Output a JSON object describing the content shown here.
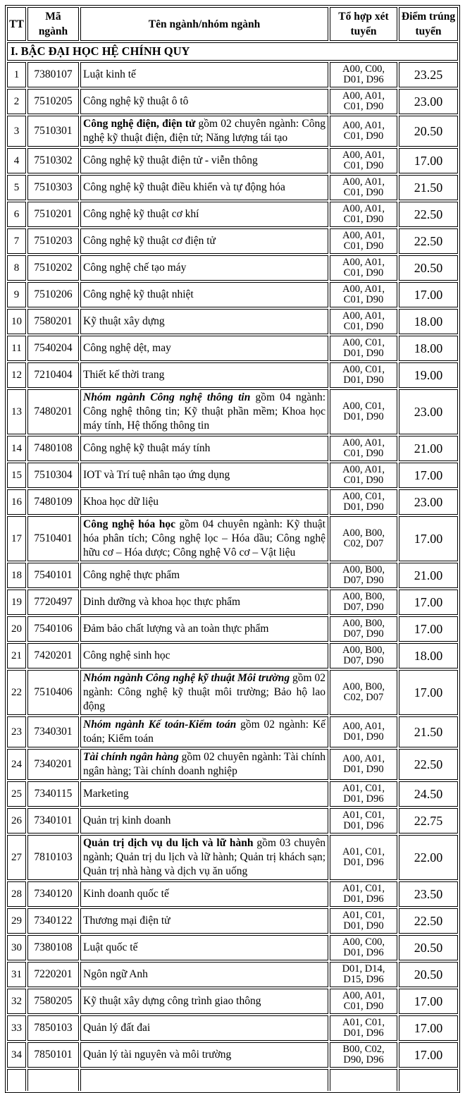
{
  "table": {
    "columns": [
      {
        "key": "tt",
        "label": "TT"
      },
      {
        "key": "code",
        "label": "Mã\nngành"
      },
      {
        "key": "name",
        "label": "Tên ngành/nhóm ngành"
      },
      {
        "key": "combo",
        "label": "Tổ hợp xét\ntuyển"
      },
      {
        "key": "score",
        "label": "Điểm trúng\ntuyển"
      }
    ],
    "section_header": "I. BẬC ĐẠI HỌC HỆ CHÍNH QUY",
    "rows": [
      {
        "tt": "1",
        "code": "7380107",
        "name": "Luật kinh tế",
        "combo": "A00, C00,\nD01, D96",
        "score": "23.25"
      },
      {
        "tt": "2",
        "code": "7510205",
        "name": "Công nghệ kỹ thuật ô tô",
        "combo": "A00, A01,\nC01, D90",
        "score": "23.00"
      },
      {
        "tt": "3",
        "code": "7510301",
        "name_em": "Công nghệ điện, điện tử",
        "em_italic": false,
        "name": " gồm 02 chuyên ngành: Công nghệ kỹ thuật điện, điện tử; Năng lượng tái tạo",
        "combo": "A00, A01,\nC01, D90",
        "score": "20.50"
      },
      {
        "tt": "4",
        "code": "7510302",
        "name": "Công nghệ kỹ thuật điện tử - viễn thông",
        "combo": "A00, A01,\nC01, D90",
        "score": "17.00"
      },
      {
        "tt": "5",
        "code": "7510303",
        "name": "Công nghệ kỹ thuật điều khiển và tự động hóa",
        "combo": "A00, A01,\nC01, D90",
        "score": "21.50"
      },
      {
        "tt": "6",
        "code": "7510201",
        "name": "Công nghệ kỹ thuật cơ khí",
        "combo": "A00, A01,\nC01, D90",
        "score": "22.50"
      },
      {
        "tt": "7",
        "code": "7510203",
        "name": "Công nghệ kỹ thuật cơ điện tử",
        "combo": "A00, A01,\nC01, D90",
        "score": "22.50"
      },
      {
        "tt": "8",
        "code": "7510202",
        "name": "Công nghệ chế tạo máy",
        "combo": "A00, A01,\nC01, D90",
        "score": "20.50"
      },
      {
        "tt": "9",
        "code": "7510206",
        "name": "Công nghệ kỹ thuật nhiệt",
        "combo": "A00, A01,\nC01, D90",
        "score": "17.00"
      },
      {
        "tt": "10",
        "code": "7580201",
        "name": "Kỹ thuật xây dựng",
        "combo": "A00, A01,\nC01, D90",
        "score": "18.00"
      },
      {
        "tt": "11",
        "code": "7540204",
        "name": "Công nghệ dệt, may",
        "combo": "A00, C01,\nD01, D90",
        "score": "18.00"
      },
      {
        "tt": "12",
        "code": "7210404",
        "name": "Thiết kế thời trang",
        "combo": "A00, C01,\nD01, D90",
        "score": "19.00"
      },
      {
        "tt": "13",
        "code": "7480201",
        "name_em": "Nhóm ngành Công nghệ thông tin",
        "em_italic": true,
        "name": " gồm 04 ngành: Công nghệ thông tin; Kỹ thuật phần mềm; Khoa học máy tính, Hệ thống thông tin",
        "combo": "A00, C01,\nD01, D90",
        "score": "23.00"
      },
      {
        "tt": "14",
        "code": "7480108",
        "name": "Công nghệ kỹ thuật máy tính",
        "combo": "A00, A01,\nC01, D90",
        "score": "21.00"
      },
      {
        "tt": "15",
        "code": "7510304",
        "name": "IOT và Trí tuệ nhân tạo ứng dụng",
        "combo": "A00, A01,\nC01, D90",
        "score": "17.00"
      },
      {
        "tt": "16",
        "code": "7480109",
        "name": "Khoa học dữ liệu",
        "combo": "A00, C01,\nD01, D90",
        "score": "23.00"
      },
      {
        "tt": "17",
        "code": "7510401",
        "name_em": "Công nghệ hóa học",
        "em_italic": false,
        "name": " gồm 04 chuyên ngành: Kỹ thuật hóa phân tích; Công nghệ lọc – Hóa dầu; Công nghệ hữu cơ – Hóa dược; Công nghệ Vô cơ – Vật liệu",
        "combo": "A00, B00,\nC02, D07",
        "score": "17.00"
      },
      {
        "tt": "18",
        "code": "7540101",
        "name": "Công nghệ thực phẩm",
        "combo": "A00, B00,\nD07, D90",
        "score": "21.00"
      },
      {
        "tt": "19",
        "code": "7720497",
        "name": "Dinh dưỡng và khoa học thực phẩm",
        "combo": "A00, B00,\nD07, D90",
        "score": "17.00"
      },
      {
        "tt": "20",
        "code": "7540106",
        "name": "Đảm bảo chất lượng và an toàn thực phẩm",
        "combo": "A00, B00,\nD07, D90",
        "score": "17.00"
      },
      {
        "tt": "21",
        "code": "7420201",
        "name": "Công nghệ sinh học",
        "combo": "A00, B00,\nD07, D90",
        "score": "18.00"
      },
      {
        "tt": "22",
        "code": "7510406",
        "name_em": "Nhóm ngành Công nghệ kỹ thuật Môi trường",
        "em_italic": true,
        "name": " gồm 02 ngành: Công nghệ kỹ thuật môi trường; Bảo hộ lao động",
        "combo": "A00, B00,\nC02, D07",
        "score": "17.00"
      },
      {
        "tt": "23",
        "code": "7340301",
        "name_em": "Nhóm ngành Kế toán-Kiểm toán",
        "em_italic": true,
        "name": " gồm 02 ngành: Kế toán; Kiểm toán",
        "combo": "A00, A01,\nD01, D90",
        "score": "21.50"
      },
      {
        "tt": "24",
        "code": "7340201",
        "name_em": "Tài chính ngân hàng",
        "em_italic": true,
        "name": " gồm 02 chuyên ngành: Tài chính ngân hàng; Tài chính doanh nghiệp",
        "combo": "A00, A01,\nD01, D90",
        "score": "22.50"
      },
      {
        "tt": "25",
        "code": "7340115",
        "name": "Marketing",
        "combo": "A01, C01,\nD01, D96",
        "score": "24.50"
      },
      {
        "tt": "26",
        "code": "7340101",
        "name": "Quản trị kinh doanh",
        "combo": "A01, C01,\nD01, D96",
        "score": "22.75"
      },
      {
        "tt": "27",
        "code": "7810103",
        "name_em": "Quản trị dịch vụ du lịch và lữ hành",
        "em_italic": false,
        "name": " gồm 03 chuyên ngành; Quản trị du lịch và lữ hành; Quản trị khách sạn; Quản trị nhà hàng và dịch vụ ăn uống",
        "combo": "A01, C01,\nD01, D96",
        "score": "22.00"
      },
      {
        "tt": "28",
        "code": "7340120",
        "name": "Kinh doanh quốc tế",
        "combo": "A01, C01,\nD01, D96",
        "score": "23.50"
      },
      {
        "tt": "29",
        "code": "7340122",
        "name": "Thương mại điện tử",
        "combo": "A01, C01,\nD01, D90",
        "score": "22.50"
      },
      {
        "tt": "30",
        "code": "7380108",
        "name": "Luật quốc tế",
        "combo": "A00, C00,\nD01, D96",
        "score": "20.50"
      },
      {
        "tt": "31",
        "code": "7220201",
        "name": "Ngôn ngữ Anh",
        "combo": "D01, D14,\nD15, D96",
        "score": "20.50"
      },
      {
        "tt": "32",
        "code": "7580205",
        "name": "Kỹ thuật xây dựng công trình giao thông",
        "combo": "A00, A01,\nC01, D90",
        "score": "17.00"
      },
      {
        "tt": "33",
        "code": "7850103",
        "name": "Quản lý đất đai",
        "combo": "A01, C01,\nD01, D96",
        "score": "17.00"
      },
      {
        "tt": "34",
        "code": "7850101",
        "name": "Quản lý tài nguyên và môi trường",
        "combo": "B00, C02,\nD90, D96",
        "score": "17.00"
      }
    ]
  },
  "colors": {
    "border": "#000000",
    "text": "#000000",
    "background": "#ffffff"
  }
}
